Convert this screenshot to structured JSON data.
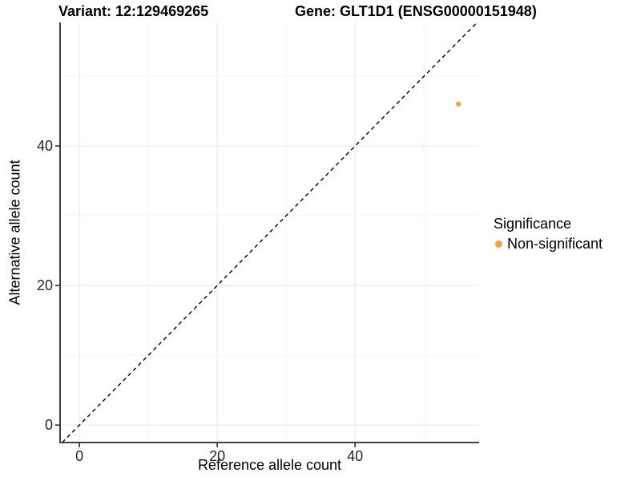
{
  "figure": {
    "title_left": "Variant: 12:129469265",
    "title_right": "Gene: GLT1D1 (ENSG00000151948)"
  },
  "chart_data": {
    "type": "scatter",
    "title_left": "Variant: 12:129469265",
    "title_right": "Gene: GLT1D1 (ENSG00000151948)",
    "xlabel": "Reference allele count",
    "ylabel": "Alternative allele count",
    "xlim": [
      -2.8,
      58.0
    ],
    "ylim": [
      -2.5,
      57.7
    ],
    "x_ticks": [
      0,
      20,
      40
    ],
    "y_ticks": [
      0,
      20,
      40
    ],
    "x_minor_ticks": [
      10,
      30,
      50
    ],
    "y_minor_ticks": [
      10,
      30,
      50
    ],
    "grid": "major and minor, light gray",
    "identity_line": {
      "style": "dashed",
      "slope": 1,
      "intercept": 0,
      "color": "#000000"
    },
    "series": [
      {
        "name": "Non-significant",
        "color": "#F9A23C",
        "points": [
          {
            "x": 55,
            "y": 46
          }
        ]
      }
    ],
    "legend": {
      "title": "Significance",
      "position": "right",
      "entries": [
        {
          "label": "Non-significant",
          "color": "#F9A23C"
        }
      ]
    }
  },
  "colors": {
    "background": "#ffffff",
    "point": "#F9A23C",
    "axis": "#404040",
    "tick_label": "#262626",
    "grid_major": "#e7e7e7",
    "grid_minor": "#f3f3f3",
    "identity_line": "#000000"
  }
}
